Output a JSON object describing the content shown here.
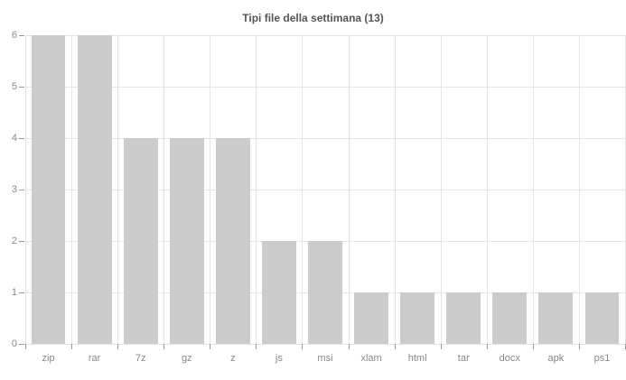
{
  "chart_data": {
    "type": "bar",
    "title": "Tipi file della settimana (13)",
    "categories": [
      "zip",
      "rar",
      "7z",
      "gz",
      "z",
      "js",
      "msi",
      "xlam",
      "html",
      "tar",
      "docx",
      "apk",
      "ps1"
    ],
    "values": [
      6,
      6,
      4,
      4,
      4,
      2,
      2,
      1,
      1,
      1,
      1,
      1,
      1
    ],
    "xlabel": "",
    "ylabel": "",
    "ylim": [
      0,
      6
    ],
    "yticks": [
      0,
      1,
      2,
      3,
      4,
      5,
      6
    ],
    "grid": true,
    "legend": false,
    "colors": {
      "background": "#ffffff",
      "bar": "#cccccc",
      "gridline": "#e4e4e4",
      "tick": "#999999",
      "axis_label": "#888888",
      "title": "#555555"
    }
  }
}
